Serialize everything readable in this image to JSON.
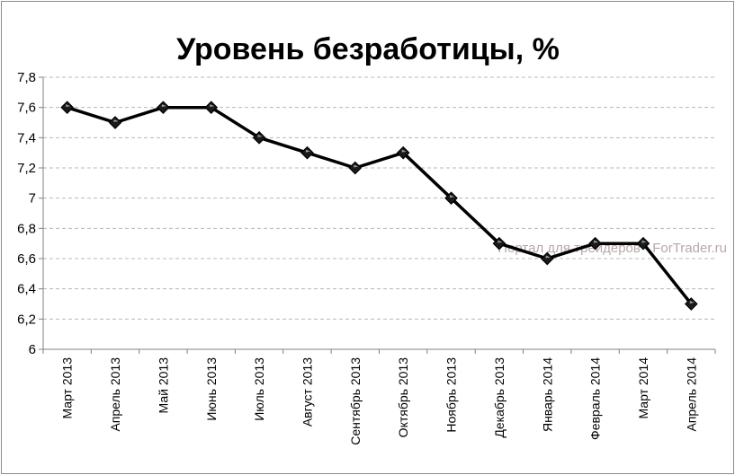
{
  "chart_data": {
    "type": "line",
    "title": "Уровень безработицы, %",
    "xlabel": "",
    "ylabel": "",
    "categories": [
      "Март 2013",
      "Апрель 2013",
      "Май 2013",
      "Июнь 2013",
      "Июль 2013",
      "Август 2013",
      "Сентябрь 2013",
      "Октябрь 2013",
      "Ноябрь 2013",
      "Декабрь 2013",
      "Январь 2014",
      "Февраль 2014",
      "Март 2014",
      "Апрель 2014"
    ],
    "values": [
      7.6,
      7.5,
      7.6,
      7.6,
      7.4,
      7.3,
      7.2,
      7.3,
      7.0,
      6.7,
      6.6,
      6.7,
      6.7,
      6.3
    ],
    "ylim": [
      6,
      7.8
    ],
    "yticks": [
      "6",
      "6,2",
      "6,4",
      "6,6",
      "6,8",
      "7",
      "7,2",
      "7,4",
      "7,6",
      "7,8"
    ],
    "ytick_values": [
      6,
      6.2,
      6.4,
      6.6,
      6.8,
      7,
      7.2,
      7.4,
      7.6,
      7.8
    ],
    "grid": true,
    "line_color": "#000000",
    "marker": "diamond",
    "watermark": "Портал для трейдеров - ForTrader.ru"
  }
}
